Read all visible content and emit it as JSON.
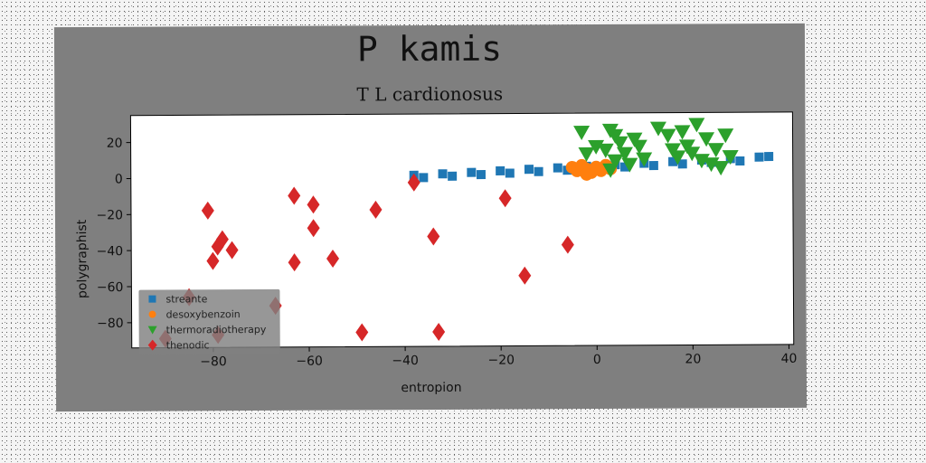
{
  "chart_data": {
    "type": "scatter",
    "title": "P kamis",
    "subtitle": "T L cardionosus",
    "xlabel": "entropion",
    "ylabel": "polygraphist",
    "xlim": [
      -97,
      41
    ],
    "ylim": [
      -94,
      35
    ],
    "xticks": [
      "−80",
      "−60",
      "−40",
      "−20",
      "0",
      "20",
      "40"
    ],
    "yticks": [
      "20",
      "0",
      "−20",
      "−40",
      "−60",
      "−80"
    ],
    "legend_position": "lower-left",
    "series": [
      {
        "name": "streante",
        "color": "#1f77b4",
        "marker": "square",
        "points": [
          [
            -38,
            1
          ],
          [
            -32,
            1.7
          ],
          [
            -26,
            2.4
          ],
          [
            -20,
            3.2
          ],
          [
            -14,
            4.0
          ],
          [
            -8,
            4.7
          ],
          [
            -2,
            5.5
          ],
          [
            4,
            6.3
          ],
          [
            10,
            7.0
          ],
          [
            16,
            7.8
          ],
          [
            22,
            8.6
          ],
          [
            28,
            9.3
          ],
          [
            34,
            10.1
          ],
          [
            36,
            10.4
          ],
          [
            -36,
            -0.3
          ],
          [
            -30,
            0.4
          ],
          [
            -24,
            1.2
          ],
          [
            -18,
            1.9
          ],
          [
            -12,
            2.7
          ],
          [
            -6,
            3.4
          ],
          [
            0,
            4.2
          ],
          [
            6,
            5.0
          ],
          [
            12,
            5.7
          ],
          [
            18,
            6.5
          ],
          [
            24,
            7.3
          ],
          [
            30,
            8.0
          ]
        ]
      },
      {
        "name": "desoxybenzoin",
        "color": "#ff7f0e",
        "marker": "circle",
        "points": [
          [
            -5,
            5
          ],
          [
            -4,
            3
          ],
          [
            -3,
            6
          ],
          [
            -2,
            4
          ],
          [
            -1,
            2
          ],
          [
            0,
            5
          ],
          [
            1,
            3
          ],
          [
            2,
            6
          ],
          [
            3,
            4
          ],
          [
            -2,
            1
          ]
        ]
      },
      {
        "name": "thermoradiotherapy",
        "color": "#2ca02c",
        "marker": "triangle-down",
        "points": [
          [
            -3,
            24
          ],
          [
            0,
            16
          ],
          [
            2,
            14
          ],
          [
            3,
            25
          ],
          [
            4,
            22
          ],
          [
            5,
            18
          ],
          [
            6,
            12
          ],
          [
            7,
            6
          ],
          [
            8,
            20
          ],
          [
            9,
            16
          ],
          [
            4,
            8
          ],
          [
            3,
            3
          ],
          [
            -2,
            12
          ],
          [
            10,
            9
          ],
          [
            13,
            26
          ],
          [
            15,
            22
          ],
          [
            16,
            14
          ],
          [
            17,
            10
          ],
          [
            18,
            24
          ],
          [
            19,
            16
          ],
          [
            20,
            12
          ],
          [
            21,
            28
          ],
          [
            22,
            8
          ],
          [
            23,
            20
          ],
          [
            24,
            6
          ],
          [
            25,
            14
          ],
          [
            26,
            4
          ],
          [
            27,
            22
          ],
          [
            28,
            10
          ]
        ]
      },
      {
        "name": "thenodic",
        "color": "#d62728",
        "marker": "diamond",
        "points": [
          [
            -38,
            -3
          ],
          [
            -81,
            -18
          ],
          [
            -79,
            -38
          ],
          [
            -78,
            -34
          ],
          [
            -76,
            -40
          ],
          [
            -80,
            -46
          ],
          [
            -63,
            -10
          ],
          [
            -63,
            -47
          ],
          [
            -59,
            -15
          ],
          [
            -59,
            -28
          ],
          [
            -55,
            -45
          ],
          [
            -46,
            -18
          ],
          [
            -34,
            -33
          ],
          [
            -19,
            -12
          ],
          [
            -6,
            -38
          ],
          [
            -15,
            -55
          ],
          [
            -49,
            -86
          ],
          [
            -33,
            -86
          ],
          [
            -67,
            -71
          ],
          [
            -85,
            -66
          ],
          [
            -90,
            -89
          ],
          [
            -79,
            -87
          ]
        ]
      }
    ]
  }
}
